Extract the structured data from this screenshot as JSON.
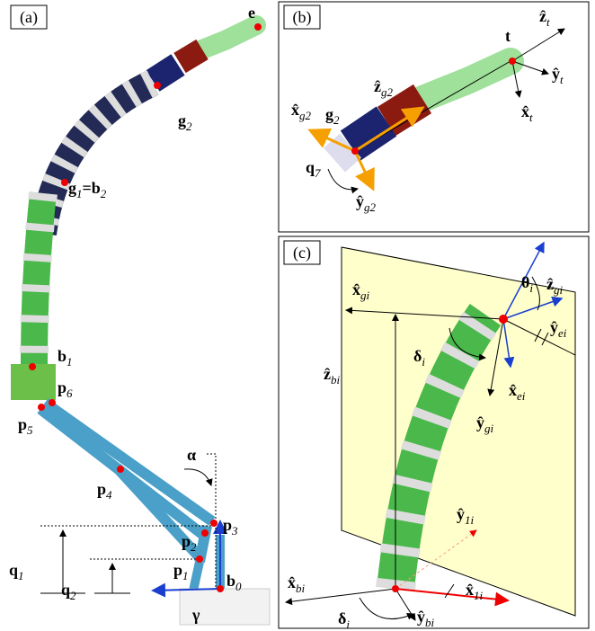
{
  "panel_a": {
    "tag": "(a)",
    "labels": [
      {
        "parts": [
          "e"
        ]
      },
      {
        "parts": [
          "g",
          "2"
        ]
      },
      {
        "parts": [
          "g",
          "1",
          "=b",
          "2"
        ]
      },
      {
        "parts": [
          "b",
          "1"
        ]
      },
      {
        "parts": [
          "p",
          "6"
        ]
      },
      {
        "parts": [
          "p",
          "5"
        ]
      },
      {
        "parts": [
          "p",
          "4"
        ]
      },
      {
        "parts": [
          "α"
        ]
      },
      {
        "parts": [
          "p",
          "3"
        ]
      },
      {
        "parts": [
          "p",
          "2"
        ]
      },
      {
        "parts": [
          "p",
          "1"
        ]
      },
      {
        "parts": [
          "b",
          "0"
        ]
      },
      {
        "parts": [
          "q",
          "1"
        ]
      },
      {
        "parts": [
          "q",
          "2"
        ]
      },
      {
        "parts": [
          "γ"
        ]
      }
    ]
  },
  "panel_b": {
    "tag": "(b)",
    "labels": [
      {
        "parts": [
          "ẑ",
          "t"
        ]
      },
      {
        "parts": [
          "t"
        ]
      },
      {
        "parts": [
          "ŷ",
          "t"
        ]
      },
      {
        "parts": [
          "x̂",
          "t"
        ]
      },
      {
        "parts": [
          "ẑ",
          "g2"
        ]
      },
      {
        "parts": [
          "x̂",
          "g2"
        ]
      },
      {
        "parts": [
          "g",
          "2"
        ]
      },
      {
        "parts": [
          "q",
          "7"
        ]
      },
      {
        "parts": [
          "ŷ",
          "g2"
        ]
      }
    ]
  },
  "panel_c": {
    "tag": "(c)",
    "labels": [
      {
        "parts": [
          "ẑ",
          "gi"
        ]
      },
      {
        "parts": [
          "θ",
          "i"
        ]
      },
      {
        "parts": [
          "ŷ",
          "ei"
        ]
      },
      {
        "parts": [
          "x̂",
          "gi"
        ]
      },
      {
        "parts": [
          "δ",
          "i"
        ]
      },
      {
        "parts": [
          "x̂",
          "ei"
        ]
      },
      {
        "parts": [
          "ẑ",
          "bi"
        ]
      },
      {
        "parts": [
          "ŷ",
          "gi"
        ]
      },
      {
        "parts": [
          "ŷ",
          "1i"
        ]
      },
      {
        "parts": [
          "x̂",
          "bi"
        ]
      },
      {
        "parts": [
          "x̂",
          "1i"
        ]
      },
      {
        "parts": [
          "δ",
          "i"
        ]
      },
      {
        "parts": [
          "ŷ",
          "bi"
        ]
      }
    ]
  }
}
